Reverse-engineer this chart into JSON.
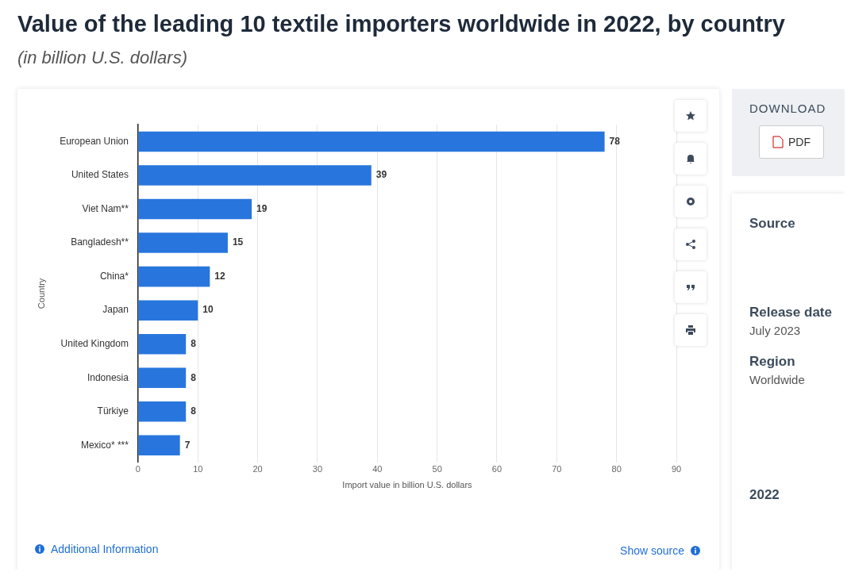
{
  "chart_data": {
    "type": "bar",
    "orientation": "horizontal",
    "title": "Value of the leading 10 textile importers worldwide in 2022, by country",
    "subtitle": "(in billion U.S. dollars)",
    "categories": [
      "European Union",
      "United States",
      "Viet Nam**",
      "Bangladesh**",
      "China*",
      "Japan",
      "United Kingdom",
      "Indonesia",
      "Türkiye",
      "Mexico* ***"
    ],
    "values": [
      78,
      39,
      19,
      15,
      12,
      10,
      8,
      8,
      8,
      7
    ],
    "color": "#2876dd",
    "xlim": [
      0,
      90
    ],
    "xticks": [
      0,
      10,
      20,
      30,
      40,
      50,
      60,
      70,
      80,
      90
    ],
    "xlabel": "Import value in billion U.S. dollars",
    "ylabel": "Country",
    "grid": "x",
    "legend": false,
    "data_labels": true,
    "annotations": [
      "Additional Information",
      "Show source",
      "DOWNLOAD",
      "PDF",
      "Source",
      "Release date",
      "July 2023",
      "Region",
      "Worldwide",
      "2022"
    ]
  }
}
